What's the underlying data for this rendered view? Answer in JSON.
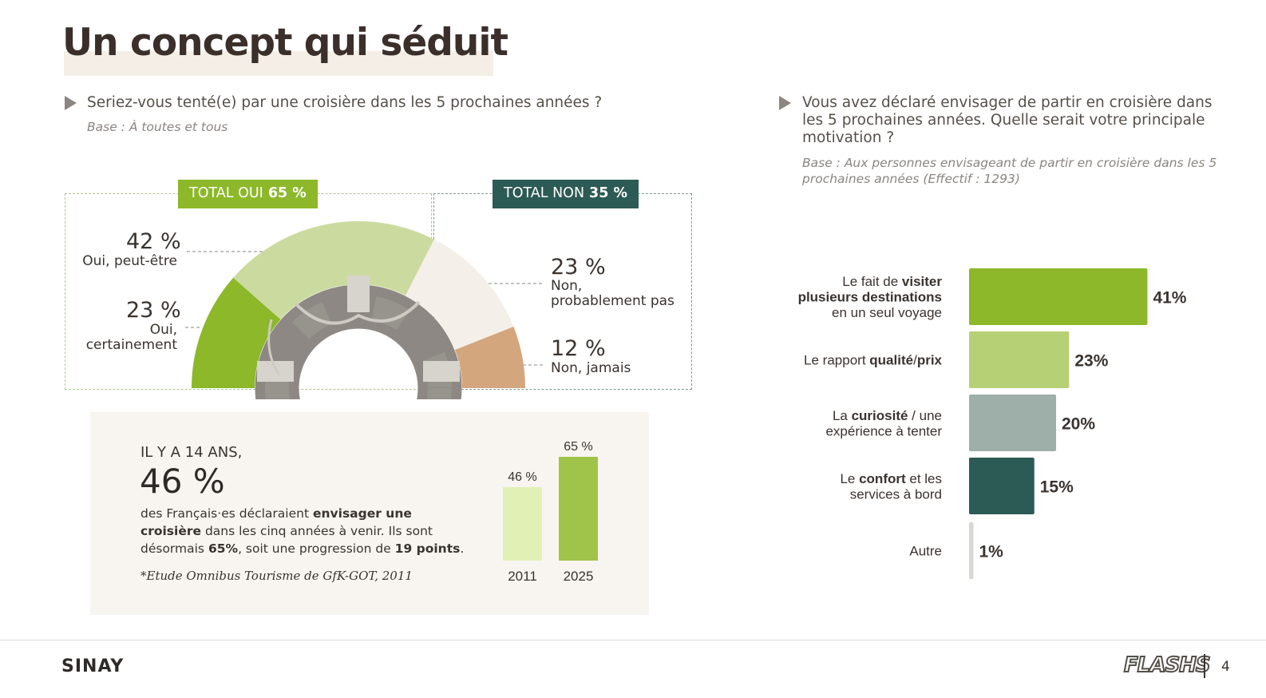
{
  "title": "Un concept qui séduit",
  "left_section": {
    "question": "Seriez-vous tenté(e) par une croisière dans les 5 prochaines années ?",
    "base": "Base : À toutes et tous",
    "total_oui_label": "TOTAL OUI",
    "total_oui_value": "65 %",
    "total_non_label": "TOTAL NON",
    "total_non_value": "35 %"
  },
  "right_section": {
    "question": "Vous avez déclaré envisager de partir en croisière dans les 5 prochaines années. Quelle serait votre principale motivation ?",
    "base": "Base : Aux personnes envisageant de partir en croisière dans les 5 prochaines années (Effectif : 1293)"
  },
  "panel": {
    "heading": "IL Y A 14 ANS,",
    "big_value": "46 %",
    "text_1": "des Français·es déclaraient ",
    "text_bold_1": "envisager une croisière",
    "text_2": " dans les cinq années à venir. Ils sont désormais ",
    "text_bold_2": "65%",
    "text_3": ", soit une progression de ",
    "text_bold_3": "19 points",
    "text_4": ".",
    "source": "*Etude Omnibus Tourisme de GfK-GOT, 2011"
  },
  "chart_data": [
    {
      "type": "pie",
      "variant": "semi-donut",
      "slices": [
        {
          "label_line1": "Oui,",
          "label_line2": "certainement",
          "value": 23,
          "display": "23 %",
          "color": "#8cb829"
        },
        {
          "label_line1": "Oui, peut-être",
          "label_line2": "",
          "value": 42,
          "display": "42 %",
          "color": "#cbdb9f"
        },
        {
          "label_line1": "Non,",
          "label_line2": "probablement pas",
          "value": 23,
          "display": "23 %",
          "color": "#f4efe8"
        },
        {
          "label_line1": "Non, jamais",
          "label_line2": "",
          "value": 12,
          "display": "12 %",
          "color": "#d4a67e"
        }
      ]
    },
    {
      "type": "bar",
      "orientation": "vertical",
      "categories": [
        "2011",
        "2025"
      ],
      "values": [
        46,
        65
      ],
      "display": [
        "46 %",
        "65 %"
      ],
      "colors": [
        "#e1f0b4",
        "#a0c34a"
      ]
    },
    {
      "type": "bar",
      "orientation": "horizontal",
      "categories": [
        {
          "parts": [
            [
              "Le fait de ",
              false
            ],
            [
              "visiter",
              true
            ],
            [
              "\n",
              false
            ],
            [
              "plusieurs destinations",
              true
            ],
            [
              "\n",
              false
            ],
            [
              "en un seul voyage",
              false
            ]
          ]
        },
        {
          "parts": [
            [
              "Le rapport ",
              false
            ],
            [
              "qualité",
              true
            ],
            [
              "/",
              false
            ],
            [
              "prix",
              true
            ]
          ]
        },
        {
          "parts": [
            [
              "La ",
              false
            ],
            [
              "curiosité",
              true
            ],
            [
              " / une",
              false
            ],
            [
              "\n",
              false
            ],
            [
              "expérience à tenter",
              false
            ]
          ]
        },
        {
          "parts": [
            [
              "Le ",
              false
            ],
            [
              "confort",
              true
            ],
            [
              " et les",
              false
            ],
            [
              "\n",
              false
            ],
            [
              "services à bord",
              false
            ]
          ]
        },
        {
          "parts": [
            [
              "Autre",
              false
            ]
          ]
        }
      ],
      "values": [
        41,
        23,
        20,
        15,
        1
      ],
      "display": [
        "41%",
        "23%",
        "20%",
        "15%",
        "1%"
      ],
      "colors": [
        "#8cb829",
        "#b6d076",
        "#9eaea8",
        "#2c5a54",
        "#dcd6d0"
      ]
    }
  ],
  "footer": {
    "logo": "SINAY",
    "brand": "FLASHS",
    "page": "4"
  }
}
